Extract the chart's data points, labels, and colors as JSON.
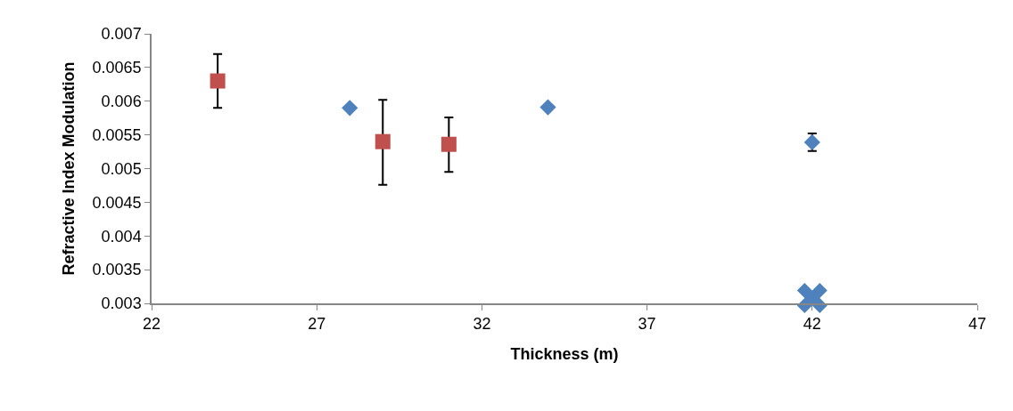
{
  "chart_data": {
    "type": "scatter",
    "xlabel": "Thickness (m)",
    "ylabel": "Refractive Index Modulation",
    "xlim": [
      22,
      47
    ],
    "xticks": [
      22,
      27,
      32,
      37,
      42,
      47
    ],
    "ylim": [
      0.003,
      0.007
    ],
    "yticks": [
      0.003,
      0.0035,
      0.004,
      0.0045,
      0.005,
      0.0055,
      0.006,
      0.0065,
      0.007
    ],
    "series": [
      {
        "color": "#4f81bd",
        "marker": "diamond",
        "x": [
          28,
          34,
          42
        ],
        "values": [
          0.0059,
          0.00591,
          0.00539
        ],
        "errors": [
          null,
          null,
          [
            0.00526,
            0.00552
          ]
        ]
      },
      {
        "color": "#c0504d",
        "marker": "square",
        "x": [
          24,
          29,
          31
        ],
        "values": [
          0.0063,
          0.0054,
          0.00536
        ],
        "errors": [
          [
            0.0059,
            0.0067
          ],
          [
            0.00476,
            0.00602
          ],
          [
            0.00495,
            0.00576
          ]
        ]
      },
      {
        "color": "#4f81bd",
        "marker": "cross",
        "x": [
          42
        ],
        "values": [
          0.00308
        ]
      }
    ]
  }
}
